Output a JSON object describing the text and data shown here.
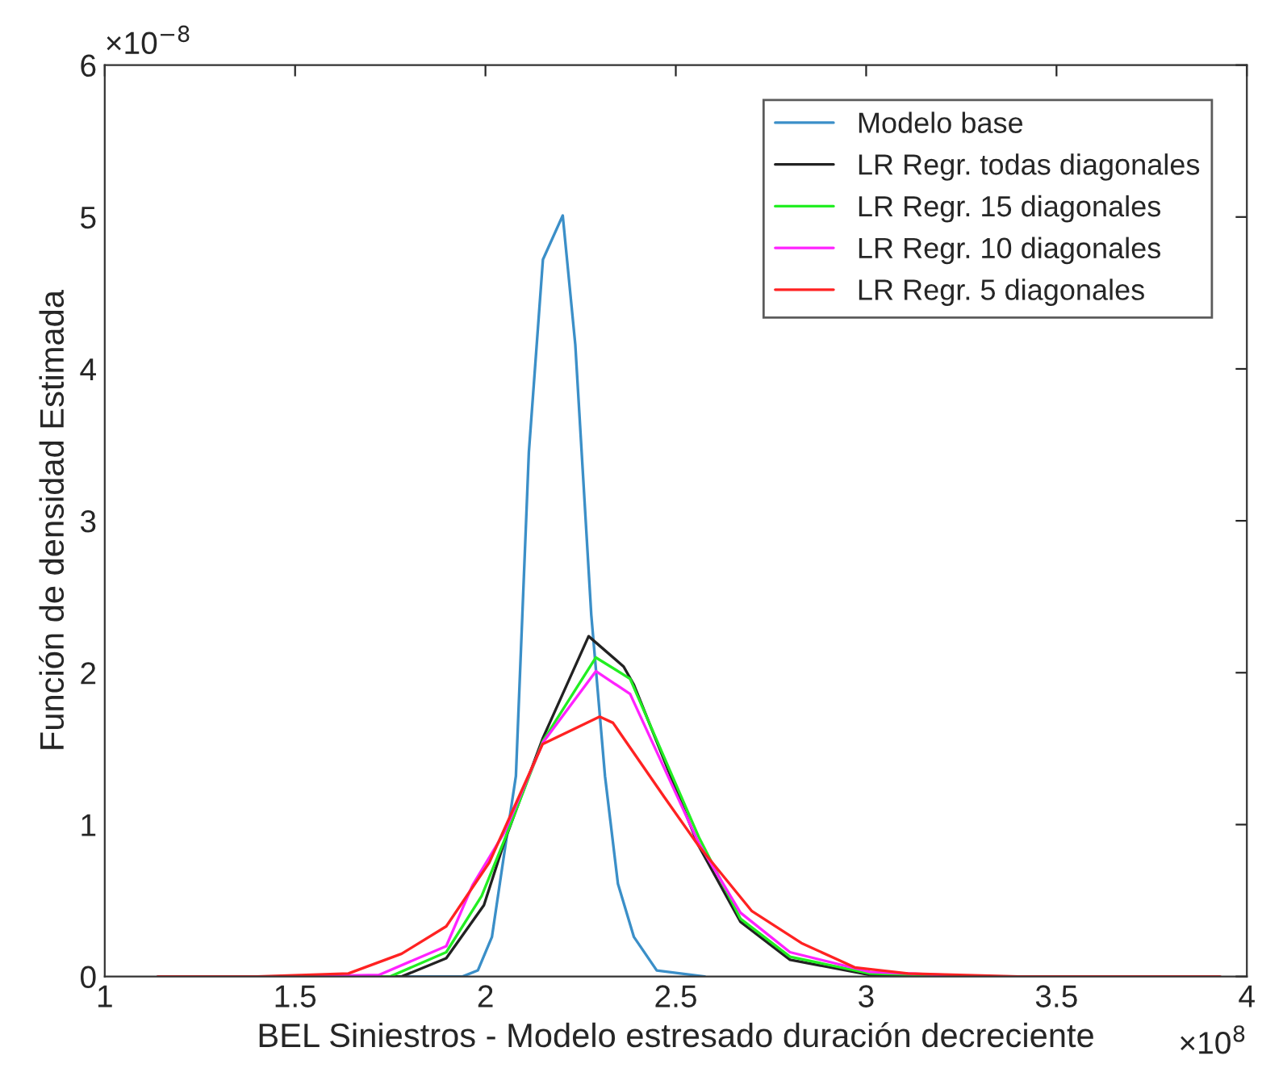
{
  "chart_data": {
    "type": "line",
    "xlabel": "BEL Siniestros - Modelo estresado duración decreciente",
    "ylabel": "Función de densidad Estimada",
    "xlim": [
      1,
      4
    ],
    "ylim": [
      0,
      6
    ],
    "xticks": [
      1,
      1.5,
      2,
      2.5,
      3,
      3.5,
      4
    ],
    "yticks": [
      0,
      1,
      2,
      3,
      4,
      5,
      6
    ],
    "annotations": [
      "×10$^{−8}$",
      "×10$^{8}$"
    ],
    "grid": false,
    "legend": "top right",
    "marker": "none",
    "line_style": "solid",
    "series": [
      {
        "name": "Modelo base",
        "color": "#3b8fc8",
        "x": [
          1.6,
          1.85,
          1.94,
          1.98,
          2.017,
          2.05,
          2.08,
          2.114,
          2.151,
          2.203,
          2.236,
          2.278,
          2.314,
          2.348,
          2.39,
          2.45,
          2.576
        ],
        "values": [
          0,
          0,
          0,
          0.04,
          0.26,
          0.82,
          1.32,
          3.45,
          4.72,
          5.01,
          4.16,
          2.38,
          1.32,
          0.61,
          0.26,
          0.04,
          0
        ]
      },
      {
        "name": "LR Regr. todas diagonales",
        "color": "#222222",
        "x": [
          1.14,
          1.5,
          1.78,
          1.897,
          1.996,
          2.05,
          2.151,
          2.271,
          2.363,
          2.39,
          2.56,
          2.67,
          2.8,
          3.01,
          3.3,
          3.9
        ],
        "values": [
          0,
          0,
          0,
          0.12,
          0.47,
          0.89,
          1.57,
          2.24,
          2.04,
          1.92,
          0.86,
          0.36,
          0.11,
          0.01,
          0,
          0
        ]
      },
      {
        "name": "LR Regr. 15 diagonales",
        "color": "#22ee22",
        "x": [
          1.14,
          1.5,
          1.75,
          1.897,
          1.99,
          2.05,
          2.151,
          2.29,
          2.38,
          2.56,
          2.67,
          2.8,
          3.01,
          3.3,
          3.9
        ],
        "values": [
          0,
          0,
          0,
          0.16,
          0.53,
          0.9,
          1.55,
          2.1,
          1.96,
          0.92,
          0.38,
          0.13,
          0.02,
          0,
          0
        ]
      },
      {
        "name": "LR Regr. 10 diagonales",
        "color": "#ff22ff",
        "x": [
          1.14,
          1.5,
          1.72,
          1.897,
          1.966,
          2.05,
          2.151,
          2.29,
          2.38,
          2.56,
          2.67,
          2.8,
          3.01,
          3.3,
          3.9
        ],
        "values": [
          0,
          0,
          0.01,
          0.2,
          0.6,
          0.95,
          1.54,
          2.01,
          1.86,
          0.88,
          0.42,
          0.16,
          0.03,
          0,
          0
        ]
      },
      {
        "name": "LR Regr. 5 diagonales",
        "color": "#ff2222",
        "x": [
          1.14,
          1.4,
          1.64,
          1.78,
          1.897,
          2.01,
          2.15,
          2.3,
          2.335,
          2.47,
          2.56,
          2.7,
          2.83,
          2.97,
          3.11,
          3.4,
          3.93
        ],
        "values": [
          0,
          0,
          0.02,
          0.15,
          0.33,
          0.75,
          1.53,
          1.71,
          1.67,
          1.18,
          0.86,
          0.43,
          0.22,
          0.06,
          0.02,
          0,
          0
        ]
      }
    ]
  }
}
